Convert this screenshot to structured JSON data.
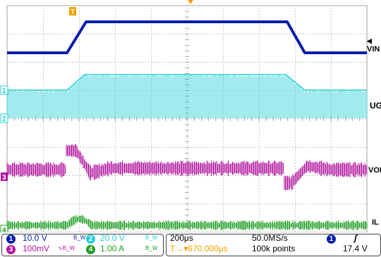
{
  "colors": {
    "ch1": "#0a1ea8",
    "ch2": "#22cfd6",
    "ch3": "#b0159e",
    "ch4": "#1e9e22",
    "trigger": "#f5a000",
    "grid": "#7a7a7a"
  },
  "channel_labels": {
    "vin": "VIN",
    "ug": "UG",
    "vol": "VOL",
    "il": "IL"
  },
  "channel_markers": {
    "c1": "1",
    "c2": "2",
    "c3": "3",
    "c4": "4",
    "trigger": "T"
  },
  "status": {
    "ch1": {
      "num": "1",
      "scale": "10.0 V",
      "suffix": "B_W"
    },
    "ch2": {
      "num": "2",
      "scale": "20.0 V",
      "suffix": "B_W"
    },
    "ch3": {
      "num": "3",
      "scale": "100mV",
      "suffix": "∿B_W"
    },
    "ch4": {
      "num": "4",
      "scale": "1.00 A",
      "suffix": "B_W"
    },
    "timebase": "200μs",
    "sample_rate": "50.0MS/s",
    "trigger_delay": "T→▾670.000μs",
    "record_length": "100k points",
    "trigger_source": "1",
    "trigger_slope": "ʃ",
    "trigger_level": "17.4 V"
  }
}
